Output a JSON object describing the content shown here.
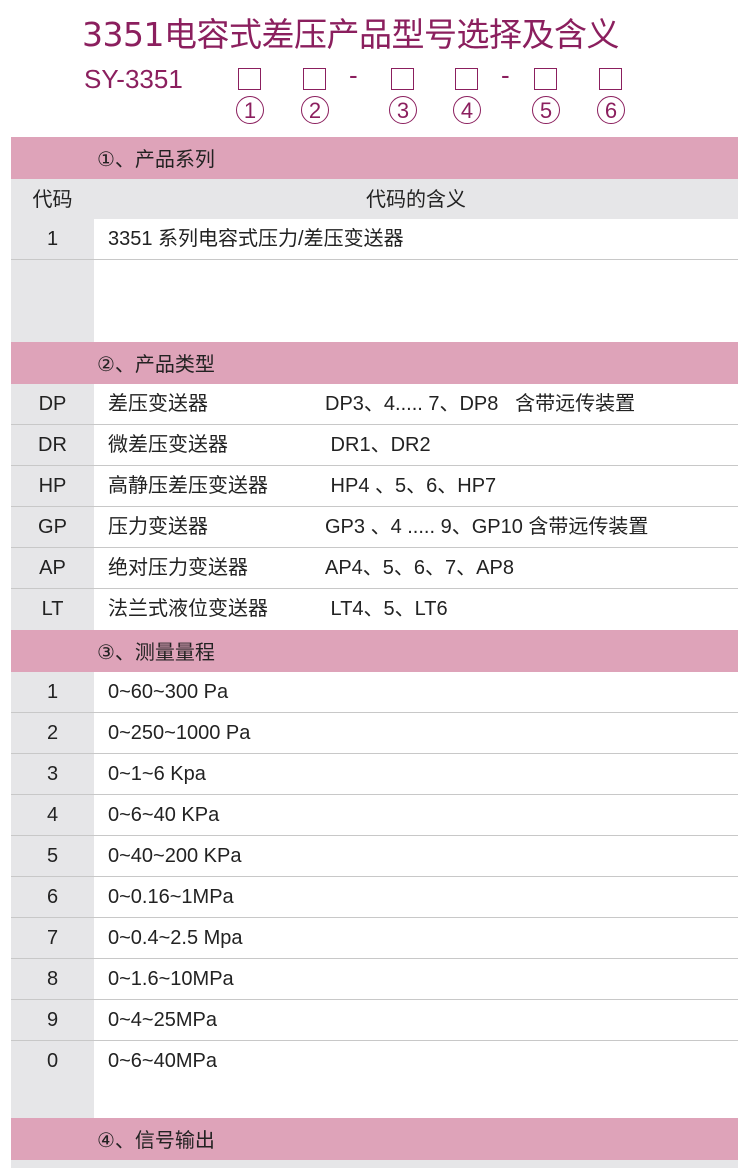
{
  "title": "3351电容式差压产品型号选择及含义",
  "model": {
    "prefix": "SY-3351",
    "dash": "-",
    "positions": [
      "①",
      "②",
      "③",
      "④",
      "⑤",
      "⑥"
    ]
  },
  "colors": {
    "accent": "#8b1f5e",
    "section_bg": "#dea3b9",
    "code_bg": "#e6e6e8"
  },
  "sections": [
    {
      "title": "①、产品系列",
      "header": {
        "code": "代码",
        "meaning": "代码的含义"
      },
      "rows": [
        {
          "code": "1",
          "desc": "3351 系列电容式压力/差压变送器"
        }
      ]
    },
    {
      "title": "②、产品类型",
      "rows": [
        {
          "code": "DP",
          "desc": "差压变送器",
          "spec": "DP3、4..... 7、DP8   含带远传装置"
        },
        {
          "code": "DR",
          "desc": "微差压变送器",
          "spec": " DR1、DR2"
        },
        {
          "code": "HP",
          "desc": "高静压差压变送器",
          "spec": " HP4 、5、6、HP7"
        },
        {
          "code": "GP",
          "desc": "压力变送器",
          "spec": "GP3 、4 ..... 9、GP10 含带远传装置"
        },
        {
          "code": "AP",
          "desc": "绝对压力变送器",
          "spec": "AP4、5、6、7、AP8"
        },
        {
          "code": "LT",
          "desc": "法兰式液位变送器",
          "spec": " LT4、5、LT6"
        }
      ]
    },
    {
      "title": "③、测量量程",
      "rows": [
        {
          "code": "1",
          "desc": "0~60~300 Pa"
        },
        {
          "code": "2",
          "desc": "0~250~1000 Pa"
        },
        {
          "code": "3",
          "desc": "0~1~6 Kpa"
        },
        {
          "code": "4",
          "desc": "0~6~40 KPa"
        },
        {
          "code": "5",
          "desc": "0~40~200 KPa"
        },
        {
          "code": "6",
          "desc": "0~0.16~1MPa"
        },
        {
          "code": "7",
          "desc": "0~0.4~2.5 Mpa"
        },
        {
          "code": "8",
          "desc": "0~1.6~10MPa"
        },
        {
          "code": "9",
          "desc": "0~4~25MPa"
        },
        {
          "code": "0",
          "desc": "0~6~40MPa"
        }
      ]
    },
    {
      "title": "④、信号输出"
    }
  ]
}
